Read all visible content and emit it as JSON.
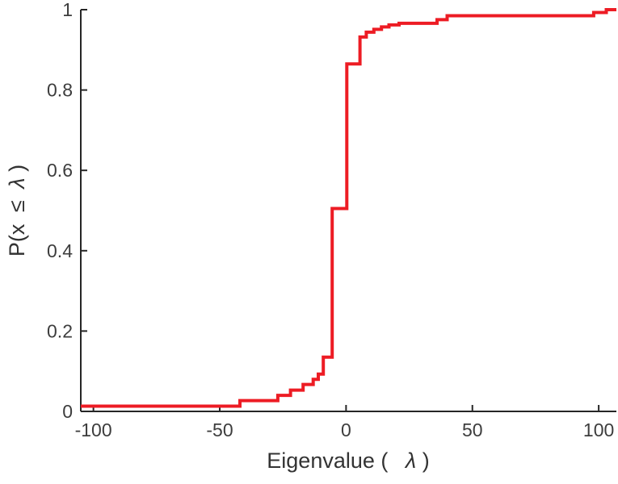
{
  "figure": {
    "background": "#ffffff"
  },
  "chart_data": {
    "type": "line",
    "style": "ecdf-step-stairs",
    "title": "",
    "xlabel_prefix": "Eigenvalue (",
    "xlabel_lambda": "λ",
    "xlabel_suffix": ")",
    "ylabel_p1": "P(x",
    "ylabel_leq": "≤",
    "ylabel_lambda": "λ",
    "ylabel_suffix": ")",
    "xlim": [
      -105,
      107
    ],
    "ylim": [
      0,
      1
    ],
    "xticks": [
      -100,
      -50,
      0,
      50,
      100
    ],
    "xtick_labels": [
      "-100",
      "-50",
      "0",
      "50",
      "100"
    ],
    "yticks": [
      0,
      0.2,
      0.4,
      0.6,
      0.8,
      1
    ],
    "ytick_labels": [
      "0",
      "0.2",
      "0.4",
      "0.6",
      "0.8",
      "1"
    ],
    "legend": "none",
    "grid": false,
    "line_color": "#ed1c24",
    "line_width": 4,
    "axis_color": "#262626",
    "tick_label_color": "#3d3d3d",
    "start": {
      "x": -105,
      "y": 0.013
    },
    "steps": [
      [
        -42,
        0.027
      ],
      [
        -27,
        0.04
      ],
      [
        -22,
        0.053
      ],
      [
        -17,
        0.067
      ],
      [
        -13,
        0.08
      ],
      [
        -11,
        0.093
      ],
      [
        -9,
        0.135
      ],
      [
        -5.5,
        0.505
      ],
      [
        0.3,
        0.865
      ],
      [
        5.5,
        0.932
      ],
      [
        8,
        0.944
      ],
      [
        11,
        0.951
      ],
      [
        14,
        0.957
      ],
      [
        17,
        0.962
      ],
      [
        21,
        0.966
      ],
      [
        36,
        0.975
      ],
      [
        40,
        0.985
      ],
      [
        98,
        0.993
      ],
      [
        103,
        1.0
      ]
    ],
    "end_x": 107
  }
}
